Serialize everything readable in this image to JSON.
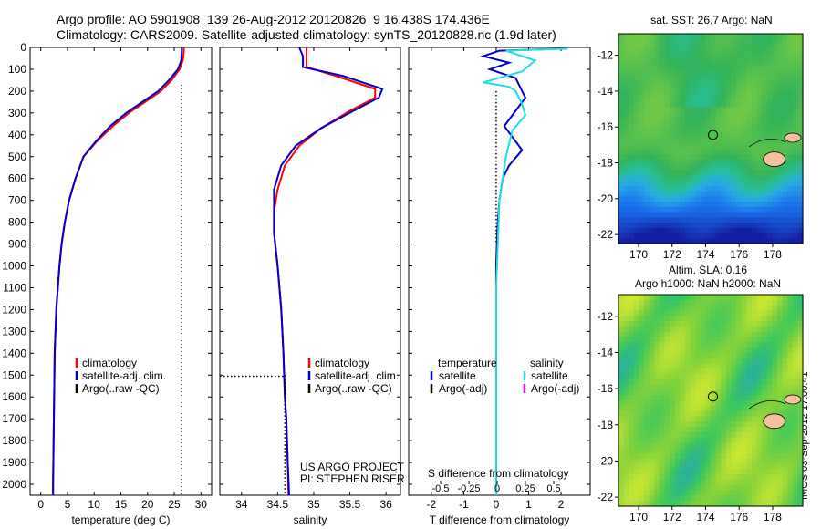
{
  "header": {
    "line1": "Argo profile: AO 5901908_139 26-Aug-2012 20120826_9 16.438S 174.436E",
    "line2": "Climatology: CARS2009. Satellite-adjusted climatology: synTS_20120828.nc (1.9d later)"
  },
  "side_label": "IMOS 03-Sep-2012 17:00:41",
  "colors": {
    "climatology": "#ff0000",
    "satellite": "#0000cc",
    "argo": "#000000",
    "sal_satellite": "#22dddd",
    "sal_argo": "#dd00dd"
  },
  "chart_data": [
    {
      "type": "line",
      "xlabel": "temperature (deg C)",
      "xlim": [
        -2,
        32
      ],
      "ylim": [
        2050,
        0
      ],
      "xticks": [
        0,
        5,
        10,
        15,
        20,
        25,
        30
      ],
      "yticks": [
        0,
        100,
        200,
        300,
        400,
        500,
        600,
        700,
        800,
        900,
        1000,
        1100,
        1200,
        1300,
        1400,
        1500,
        1600,
        1700,
        1800,
        1900,
        2000
      ],
      "legend": [
        "climatology",
        "satellite-adj. clim.",
        "Argo(..raw -QC)"
      ],
      "legend_position": "lower-center",
      "series": [
        {
          "name": "climatology",
          "color": "#ff0000",
          "x": [
            26.8,
            26.8,
            26.6,
            26.0,
            24.5,
            22.5,
            19.5,
            16.5,
            13.5,
            10.5,
            8.0,
            6.5,
            5.3,
            4.5,
            3.9,
            3.5,
            3.2,
            2.9,
            2.6,
            2.5,
            2.4,
            2.3,
            2.3
          ],
          "y": [
            0,
            20,
            60,
            100,
            150,
            200,
            250,
            300,
            360,
            430,
            500,
            600,
            700,
            800,
            900,
            1000,
            1100,
            1200,
            1400,
            1600,
            1800,
            2000,
            2050
          ]
        },
        {
          "name": "satellite-adj. clim.",
          "color": "#0000cc",
          "x": [
            26.4,
            26.4,
            26.3,
            25.7,
            24.0,
            22.0,
            19.0,
            16.0,
            13.0,
            10.3,
            8.0,
            6.5,
            5.3,
            4.5,
            3.9,
            3.5,
            3.2,
            2.9,
            2.6,
            2.5,
            2.4,
            2.3,
            2.3
          ],
          "y": [
            0,
            20,
            60,
            100,
            150,
            200,
            250,
            300,
            360,
            430,
            500,
            600,
            700,
            800,
            900,
            1000,
            1100,
            1200,
            1400,
            1600,
            1800,
            2000,
            2050
          ]
        },
        {
          "name": "Argo(..raw -QC)",
          "color": "#000000",
          "dotted": true,
          "x": [
            26.4,
            26.4,
            26.4,
            26.4,
            26.4,
            26.4,
            26.4
          ],
          "y": [
            170,
            500,
            800,
            850,
            900,
            1500,
            2050
          ]
        }
      ]
    },
    {
      "type": "line",
      "xlabel": "salinity",
      "xlim": [
        33.7,
        36.2
      ],
      "ylim": [
        2050,
        0
      ],
      "xticks": [
        34,
        34.5,
        35,
        35.5,
        36
      ],
      "xtick_labels": [
        "34",
        "34.5",
        "35",
        "35.5",
        "36"
      ],
      "legend": [
        "climatology",
        "satellite-adj. clim.",
        "Argo(..raw -QC)"
      ],
      "legend_position": "lower-right",
      "annotations": [
        "US ARGO PROJECT",
        "PI: STEPHEN RISER"
      ],
      "series": [
        {
          "name": "climatology",
          "color": "#ff0000",
          "x": [
            34.9,
            34.9,
            34.9,
            35.3,
            35.85,
            35.85,
            35.5,
            35.1,
            34.8,
            34.6,
            34.5,
            34.45,
            34.45,
            34.5,
            34.55,
            34.58,
            34.6,
            34.62,
            34.63,
            34.64,
            34.65
          ],
          "y": [
            0,
            40,
            90,
            130,
            190,
            230,
            290,
            370,
            450,
            540,
            650,
            750,
            850,
            1000,
            1200,
            1400,
            1600,
            1700,
            1800,
            1900,
            2050
          ]
        },
        {
          "name": "satellite-adj. clim.",
          "color": "#0000cc",
          "x": [
            34.8,
            34.85,
            34.85,
            35.4,
            35.95,
            35.9,
            35.55,
            35.1,
            34.75,
            34.55,
            34.45,
            34.45,
            34.45,
            34.5,
            34.55,
            34.58,
            34.6,
            34.62,
            34.63,
            34.64,
            34.66
          ],
          "y": [
            0,
            40,
            90,
            130,
            190,
            230,
            290,
            370,
            450,
            540,
            650,
            750,
            850,
            1000,
            1200,
            1400,
            1600,
            1700,
            1800,
            1900,
            2050
          ]
        },
        {
          "name": "Argo(..raw -QC)",
          "color": "#000000",
          "dotted": true,
          "x": [
            34.6,
            34.6,
            34.6,
            34.6
          ],
          "y": [
            1500,
            1700,
            1900,
            2050
          ]
        },
        {
          "name": "Argo(..raw -QC)",
          "color": "#000000",
          "dotted": true,
          "x": [
            33.7,
            34.6
          ],
          "y": [
            1505,
            1505
          ]
        }
      ]
    },
    {
      "type": "line",
      "xlabel": "T difference from climatology",
      "top_axis_label": "S difference from climatology",
      "xlim": [
        -2.7,
        2.9
      ],
      "ylim": [
        2050,
        0
      ],
      "xticks": [
        -2,
        -1,
        0,
        1,
        2
      ],
      "s_ticks": [
        -0.5,
        -0.25,
        0,
        0.25,
        0.5
      ],
      "s_tick_labels": [
        "-0.5",
        "-0.25",
        "0",
        "0.25",
        "0.5"
      ],
      "legend_temperature": [
        "temperature",
        "satellite",
        "Argo(-adj)"
      ],
      "legend_salinity": [
        "salinity",
        "satellite",
        "Argo(-adj)"
      ],
      "series": [
        {
          "name": "satellite",
          "color": "#0000cc",
          "x": [
            2.2,
            0.1,
            -0.4,
            0.4,
            -0.2,
            0.6,
            0.9,
            0.55,
            0.25,
            0.5,
            0.8,
            0.4,
            0.2,
            0.1,
            0.05,
            0.02,
            0,
            0,
            0
          ],
          "y": [
            5,
            15,
            40,
            70,
            100,
            140,
            230,
            300,
            360,
            410,
            470,
            540,
            600,
            700,
            800,
            900,
            1000,
            1500,
            2050
          ]
        },
        {
          "name": "satellite",
          "color": "#22dddd",
          "x": [
            2.2,
            0.3,
            1.2,
            0.8,
            -0.4,
            0.4,
            0.6,
            0.8,
            0.9,
            0.5,
            0.3,
            0.1,
            0.05,
            0,
            0,
            0
          ],
          "y": [
            5,
            15,
            60,
            110,
            160,
            180,
            200,
            260,
            310,
            380,
            500,
            700,
            900,
            1100,
            1500,
            2050
          ]
        },
        {
          "name": "Argo(-adj)",
          "color": "#000000",
          "dotted": true,
          "x": [
            0,
            0
          ],
          "y": [
            200,
            900
          ]
        }
      ]
    },
    {
      "type": "heatmap",
      "title": "sat. SST: 26.7  Argo: NaN",
      "xlim": [
        168.8,
        179.8
      ],
      "ylim": [
        -22.5,
        -10.8
      ],
      "xticks": [
        170,
        172,
        174,
        176,
        178
      ],
      "yticks": [
        -12,
        -14,
        -16,
        -18,
        -20,
        -22
      ],
      "float_position": [
        174.436,
        -16.438
      ]
    },
    {
      "type": "heatmap",
      "title": "Altim. SLA: 0.16",
      "subtitle": "Argo h1000: NaN  h2000: NaN",
      "xlim": [
        168.8,
        179.8
      ],
      "ylim": [
        -22.5,
        -10.8
      ],
      "xticks": [
        170,
        172,
        174,
        176,
        178
      ],
      "yticks": [
        -12,
        -14,
        -16,
        -18,
        -20,
        -22
      ],
      "float_position": [
        174.436,
        -16.438
      ]
    }
  ]
}
